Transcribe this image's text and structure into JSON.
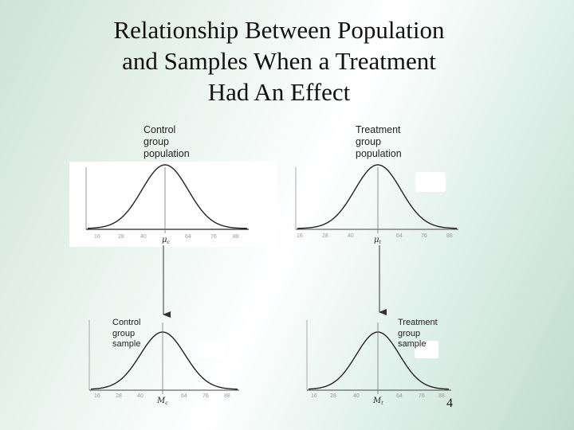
{
  "slide": {
    "title_lines": [
      "Relationship Between Population",
      "and Samples When a Treatment",
      "Had An Effect"
    ],
    "page_number": "4"
  },
  "panels": {
    "control_population": {
      "label_lines": [
        "Control",
        "group",
        "population"
      ],
      "ticks": [
        "16",
        "28",
        "40",
        "",
        "64",
        "76",
        "88"
      ],
      "mean_label": "μ",
      "mean_sub": "c"
    },
    "treatment_population": {
      "label_lines": [
        "Treatment",
        "group",
        "population"
      ],
      "ticks": [
        "16",
        "28",
        "40",
        "",
        "64",
        "76",
        "88"
      ],
      "mean_label": "μ",
      "mean_sub": "t"
    },
    "control_sample": {
      "label_lines": [
        "Control",
        "group",
        "sample"
      ],
      "ticks": [
        "16",
        "28",
        "40",
        "",
        "64",
        "76",
        "88"
      ],
      "mean_label": "M",
      "mean_sub": "c"
    },
    "treatment_sample": {
      "label_lines": [
        "Treatment",
        "group",
        "sample"
      ],
      "ticks": [
        "16",
        "28",
        "40",
        "",
        "64",
        "76",
        "88"
      ],
      "mean_label": "M",
      "mean_sub": "t"
    }
  }
}
